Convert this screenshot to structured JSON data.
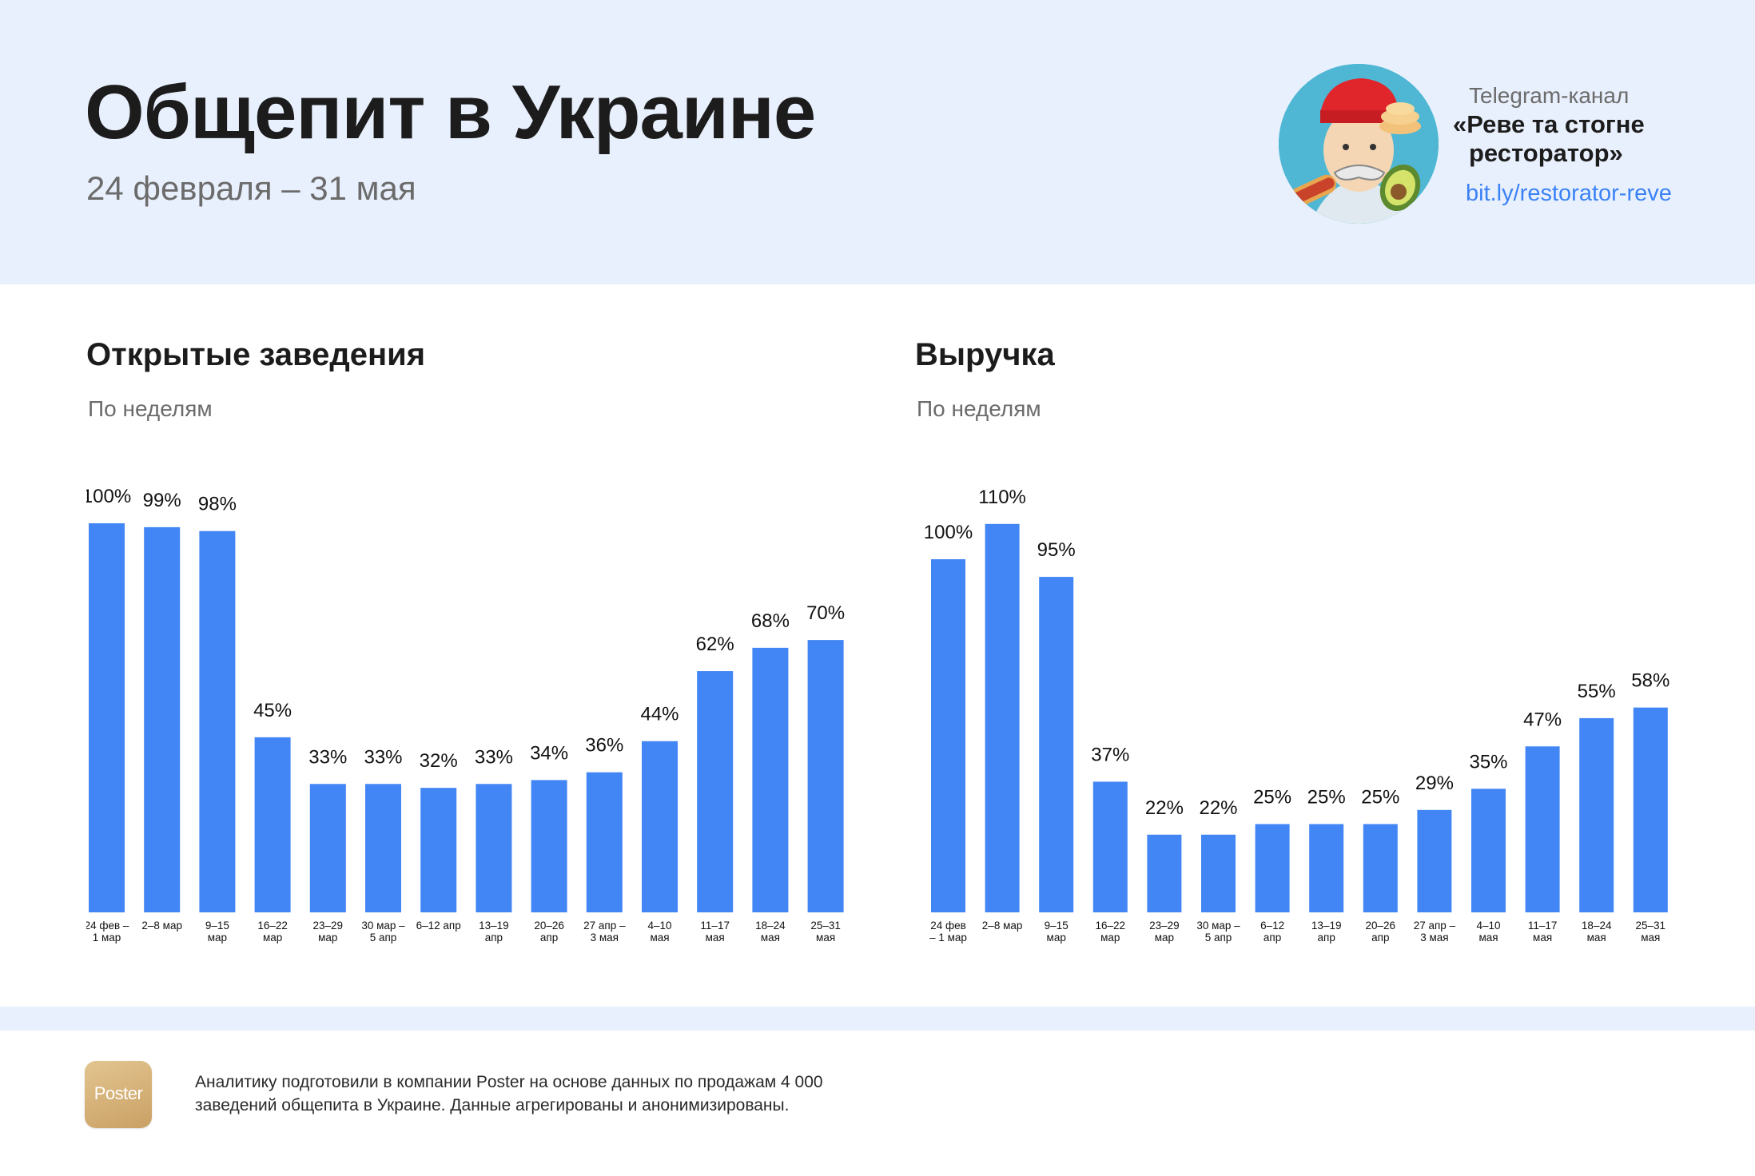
{
  "header": {
    "title": "Общепит в Украине",
    "subtitle": "24 февраля – 31 мая",
    "telegram": {
      "label": "Telegram-канал",
      "name_line1": "«Реве та стогне",
      "name_line2": "ресторатор»",
      "link": "bit.ly/restorator-reve"
    }
  },
  "chart_data": [
    {
      "type": "bar",
      "title": "Открытые заведения",
      "subtitle": "По неделям",
      "xlabel": "",
      "ylabel": "",
      "ylim": [
        0,
        110
      ],
      "categories": [
        [
          "24 фев –",
          "1 мар"
        ],
        [
          "2–8 мар"
        ],
        [
          "9–15",
          "мар"
        ],
        [
          "16–22",
          "мар"
        ],
        [
          "23–29",
          "мар"
        ],
        [
          "30 мар –",
          "5 апр"
        ],
        [
          "6–12 апр"
        ],
        [
          "13–19",
          "апр"
        ],
        [
          "20–26",
          "апр"
        ],
        [
          "27 апр –",
          "3 мая"
        ],
        [
          "4–10",
          "мая"
        ],
        [
          "11–17",
          "мая"
        ],
        [
          "18–24",
          "мая"
        ],
        [
          "25–31",
          "мая"
        ]
      ],
      "values": [
        100,
        99,
        98,
        45,
        33,
        33,
        32,
        33,
        34,
        36,
        44,
        62,
        68,
        70
      ],
      "labels": [
        "100%",
        "99%",
        "98%",
        "45%",
        "33%",
        "33%",
        "32%",
        "33%",
        "34%",
        "36%",
        "44%",
        "62%",
        "68%",
        "70%"
      ],
      "color": "#4285f4"
    },
    {
      "type": "bar",
      "title": "Выручка",
      "subtitle": "По неделям",
      "xlabel": "",
      "ylabel": "",
      "ylim": [
        0,
        110
      ],
      "categories": [
        [
          "24 фев",
          "– 1 мар"
        ],
        [
          "2–8 мар"
        ],
        [
          "9–15",
          "мар"
        ],
        [
          "16–22",
          "мар"
        ],
        [
          "23–29",
          "мар"
        ],
        [
          "30 мар –",
          "5 апр"
        ],
        [
          "6–12",
          "апр"
        ],
        [
          "13–19",
          "апр"
        ],
        [
          "20–26",
          "апр"
        ],
        [
          "27 апр –",
          "3 мая"
        ],
        [
          "4–10",
          "мая"
        ],
        [
          "11–17",
          "мая"
        ],
        [
          "18–24",
          "мая"
        ],
        [
          "25–31",
          "мая"
        ]
      ],
      "values": [
        100,
        110,
        95,
        37,
        22,
        22,
        25,
        25,
        25,
        29,
        35,
        47,
        55,
        58
      ],
      "labels": [
        "100%",
        "110%",
        "95%",
        "37%",
        "22%",
        "22%",
        "25%",
        "25%",
        "25%",
        "29%",
        "35%",
        "47%",
        "55%",
        "58%"
      ],
      "color": "#4285f4"
    }
  ],
  "footer": {
    "logo_text": "Poster",
    "line1": "Аналитику подготовили в компании Poster на основе данных по продажам 4 000",
    "line2": "заведений общепита в Украине. Данные агрегированы и анонимизированы."
  },
  "colors": {
    "header_bg": "#e9f0fd",
    "bar": "#4285f4",
    "link": "#3b82f6"
  }
}
